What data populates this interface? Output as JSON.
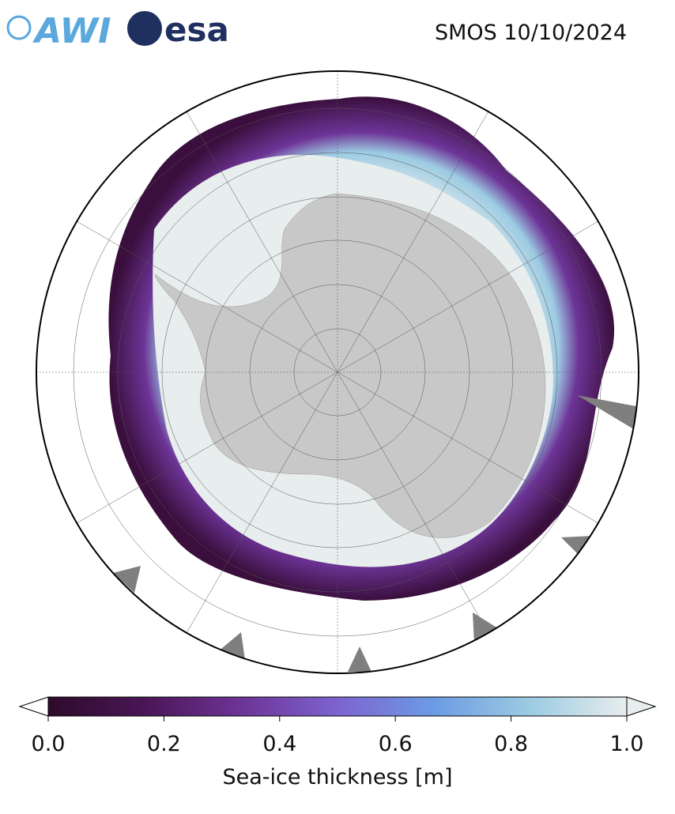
{
  "header": {
    "logos": [
      "AWI",
      "esa"
    ],
    "title": "SMOS 10/10/2024"
  },
  "colorbar": {
    "label": "Sea-ice thickness [m]",
    "range": [
      0,
      1
    ],
    "ticks": [
      {
        "value": 0,
        "label": "0.0"
      },
      0.2,
      0.4,
      0.6,
      0.8,
      {
        "value": 1,
        "label": "1.0"
      }
    ],
    "colors": [
      "#2d0a2a",
      "#4a1656",
      "#6d3497",
      "#7d63d0",
      "#6c9be4",
      "#9ccbe2",
      "#e8eded"
    ]
  }
}
